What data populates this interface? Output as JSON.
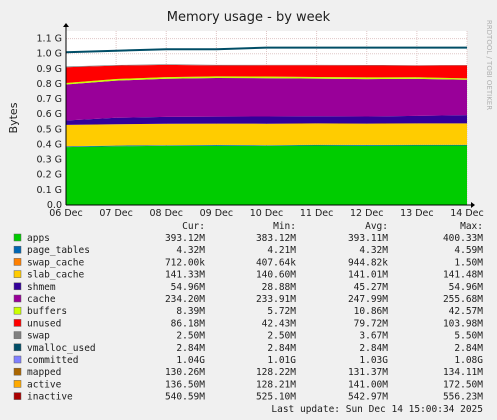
{
  "chart_data": {
    "type": "area",
    "title": "Memory usage - by week",
    "ylabel": "Bytes",
    "watermark": "RRDTOOL / TOBI OETIKER",
    "ylim": [
      0,
      1.15
    ],
    "unit_note": "values in G",
    "yticks": [
      {
        "value": 0,
        "label": "0.0"
      },
      {
        "value": 0.1,
        "label": "0.1 G"
      },
      {
        "value": 0.2,
        "label": "0.2 G"
      },
      {
        "value": 0.3,
        "label": "0.3 G"
      },
      {
        "value": 0.4,
        "label": "0.4 G"
      },
      {
        "value": 0.5,
        "label": "0.5 G"
      },
      {
        "value": 0.6,
        "label": "0.6 G"
      },
      {
        "value": 0.7,
        "label": "0.7 G"
      },
      {
        "value": 0.8,
        "label": "0.8 G"
      },
      {
        "value": 0.9,
        "label": "0.9 G"
      },
      {
        "value": 1.0,
        "label": "1.0 G"
      },
      {
        "value": 1.1,
        "label": "1.1 G"
      }
    ],
    "x": [
      "06 Dec",
      "07 Dec",
      "08 Dec",
      "09 Dec",
      "10 Dec",
      "11 Dec",
      "12 Dec",
      "13 Dec",
      "14 Dec"
    ],
    "stacked_series": [
      {
        "name": "apps",
        "color": "#00cc00",
        "values": [
          0.383,
          0.388,
          0.391,
          0.392,
          0.391,
          0.393,
          0.392,
          0.393,
          0.393
        ]
      },
      {
        "name": "page_tables",
        "color": "#0066b3",
        "values": [
          0.0043,
          0.0043,
          0.0043,
          0.0043,
          0.0043,
          0.0043,
          0.0043,
          0.0043,
          0.0043
        ]
      },
      {
        "name": "swap_cache",
        "color": "#ff8000",
        "values": [
          0.0009,
          0.0009,
          0.0009,
          0.0009,
          0.0009,
          0.0009,
          0.0009,
          0.0009,
          0.0009
        ]
      },
      {
        "name": "slab_cache",
        "color": "#ffcc00",
        "values": [
          0.141,
          0.141,
          0.141,
          0.141,
          0.141,
          0.141,
          0.141,
          0.141,
          0.141
        ]
      },
      {
        "name": "shmem",
        "color": "#330099",
        "values": [
          0.029,
          0.042,
          0.045,
          0.046,
          0.048,
          0.048,
          0.047,
          0.05,
          0.055
        ]
      },
      {
        "name": "cache",
        "color": "#990099",
        "values": [
          0.238,
          0.246,
          0.252,
          0.255,
          0.253,
          0.248,
          0.247,
          0.244,
          0.234
        ]
      },
      {
        "name": "buffers",
        "color": "#ccff00",
        "values": [
          0.0103,
          0.0108,
          0.011,
          0.011,
          0.011,
          0.011,
          0.011,
          0.011,
          0.0084
        ]
      },
      {
        "name": "unused",
        "color": "#ff0000",
        "values": [
          0.104,
          0.088,
          0.081,
          0.072,
          0.074,
          0.077,
          0.079,
          0.077,
          0.086
        ]
      },
      {
        "name": "swap",
        "color": "#808080",
        "values": [
          0.005,
          0.004,
          0.004,
          0.004,
          0.003,
          0.003,
          0.003,
          0.003,
          0.0025
        ]
      }
    ],
    "lines": [
      {
        "name": "committed",
        "color": "#004d66",
        "values": [
          1.01,
          1.02,
          1.03,
          1.03,
          1.04,
          1.04,
          1.04,
          1.04,
          1.04
        ]
      }
    ],
    "legend_headers": {
      "cur": "Cur:",
      "min": "Min:",
      "avg": "Avg:",
      "max": "Max:"
    },
    "legend": [
      {
        "name": "apps",
        "color": "#00cc00",
        "cur": "393.12M",
        "min": "383.12M",
        "avg": "393.11M",
        "max": "400.33M"
      },
      {
        "name": "page_tables",
        "color": "#0066b3",
        "cur": "4.32M",
        "min": "4.21M",
        "avg": "4.32M",
        "max": "4.59M"
      },
      {
        "name": "swap_cache",
        "color": "#ff8000",
        "cur": "712.00k",
        "min": "407.64k",
        "avg": "944.82k",
        "max": "1.50M"
      },
      {
        "name": "slab_cache",
        "color": "#ffcc00",
        "cur": "141.33M",
        "min": "140.60M",
        "avg": "141.01M",
        "max": "141.48M"
      },
      {
        "name": "shmem",
        "color": "#330099",
        "cur": "54.96M",
        "min": "28.88M",
        "avg": "45.27M",
        "max": "54.96M"
      },
      {
        "name": "cache",
        "color": "#990099",
        "cur": "234.20M",
        "min": "233.91M",
        "avg": "247.99M",
        "max": "255.68M"
      },
      {
        "name": "buffers",
        "color": "#ccff00",
        "cur": "8.39M",
        "min": "5.72M",
        "avg": "10.86M",
        "max": "42.57M"
      },
      {
        "name": "unused",
        "color": "#ff0000",
        "cur": "86.18M",
        "min": "42.43M",
        "avg": "79.72M",
        "max": "103.98M"
      },
      {
        "name": "swap",
        "color": "#808080",
        "cur": "2.50M",
        "min": "2.50M",
        "avg": "3.67M",
        "max": "5.50M"
      },
      {
        "name": "vmalloc_used",
        "color": "#004d66",
        "cur": "2.84M",
        "min": "2.84M",
        "avg": "2.84M",
        "max": "2.84M"
      },
      {
        "name": "committed",
        "color": "#8080ff",
        "cur": "1.04G",
        "min": "1.01G",
        "avg": "1.03G",
        "max": "1.08G"
      },
      {
        "name": "mapped",
        "color": "#aa6600",
        "cur": "130.26M",
        "min": "128.22M",
        "avg": "131.37M",
        "max": "134.11M"
      },
      {
        "name": "active",
        "color": "#ffaa00",
        "cur": "136.50M",
        "min": "128.21M",
        "avg": "141.00M",
        "max": "172.50M"
      },
      {
        "name": "inactive",
        "color": "#aa0000",
        "cur": "540.59M",
        "min": "525.10M",
        "avg": "542.97M",
        "max": "556.23M"
      }
    ],
    "footer": "Last update:  Sun Dec 14 15:00:34 2025"
  }
}
